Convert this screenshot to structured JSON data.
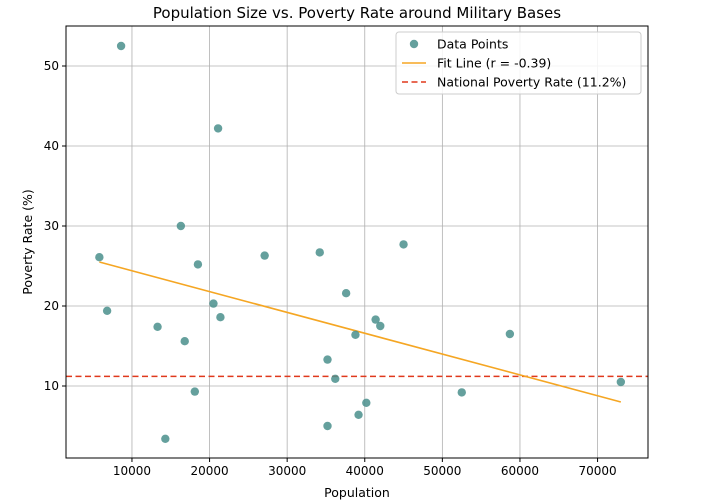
{
  "chart_data": {
    "type": "scatter",
    "title": "Population Size vs. Poverty Rate around Military Bases",
    "xlabel": "Population",
    "ylabel": "Poverty Rate (%)",
    "xlim": [
      1500,
      76500
    ],
    "ylim": [
      1,
      55
    ],
    "xticks": [
      10000,
      20000,
      30000,
      40000,
      50000,
      60000,
      70000
    ],
    "yticks": [
      10,
      20,
      30,
      40,
      50
    ],
    "grid": true,
    "legend_position": "top-right",
    "colors": {
      "points": "#4a8f8c",
      "fit": "#f5a623",
      "national": "#e0391c"
    },
    "series": [
      {
        "name": "Data Points",
        "kind": "scatter",
        "points": [
          {
            "x": 8600,
            "y": 52.5
          },
          {
            "x": 21100,
            "y": 42.2
          },
          {
            "x": 16300,
            "y": 30.0
          },
          {
            "x": 5800,
            "y": 26.1
          },
          {
            "x": 18500,
            "y": 25.2
          },
          {
            "x": 27100,
            "y": 26.3
          },
          {
            "x": 34200,
            "y": 26.7
          },
          {
            "x": 45000,
            "y": 27.7
          },
          {
            "x": 37600,
            "y": 21.6
          },
          {
            "x": 20500,
            "y": 20.3
          },
          {
            "x": 6800,
            "y": 19.4
          },
          {
            "x": 21400,
            "y": 18.6
          },
          {
            "x": 41400,
            "y": 18.3
          },
          {
            "x": 42000,
            "y": 17.5
          },
          {
            "x": 13300,
            "y": 17.4
          },
          {
            "x": 38800,
            "y": 16.4
          },
          {
            "x": 58700,
            "y": 16.5
          },
          {
            "x": 16800,
            "y": 15.6
          },
          {
            "x": 35200,
            "y": 13.3
          },
          {
            "x": 36200,
            "y": 10.9
          },
          {
            "x": 73000,
            "y": 10.5
          },
          {
            "x": 18100,
            "y": 9.3
          },
          {
            "x": 52500,
            "y": 9.2
          },
          {
            "x": 40200,
            "y": 7.9
          },
          {
            "x": 39200,
            "y": 6.4
          },
          {
            "x": 35200,
            "y": 5.0
          },
          {
            "x": 14300,
            "y": 3.4
          }
        ]
      },
      {
        "name": "Fit Line (r = -0.39)",
        "kind": "line",
        "x": [
          5800,
          73000
        ],
        "y": [
          25.5,
          8.0
        ]
      },
      {
        "name": "National Poverty Rate (11.2%)",
        "kind": "hline",
        "y": 11.2
      }
    ]
  }
}
